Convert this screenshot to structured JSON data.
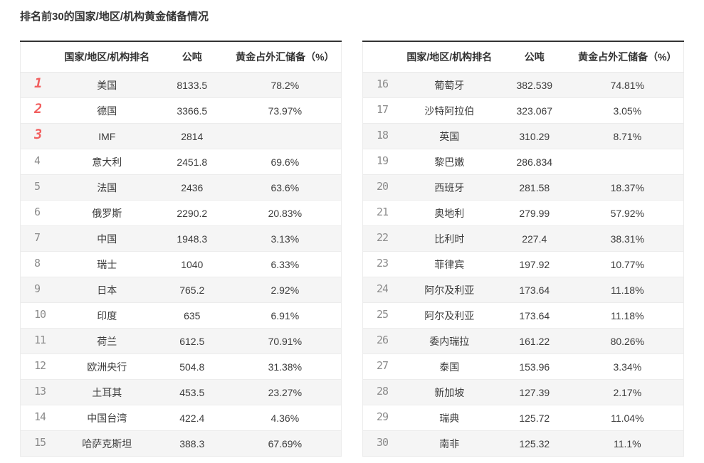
{
  "title": "排名前30的国家/地区/机构黄金储备情况",
  "colors": {
    "accent_rank_red": "#f15f5f",
    "rank_gray": "#8c8c8c",
    "row_alt_bg": "#f5f5f5",
    "table_top_border": "#333333",
    "divider_light": "#ececec",
    "text_dark": "#333333"
  },
  "chart_data": {
    "type": "table",
    "title": "排名前30的国家/地区/机构黄金储备情况",
    "columns": [
      "国家/地区/机构排名",
      "公吨",
      "黄金占外汇储备（%）"
    ],
    "layout": {
      "tables_side_by_side": 2,
      "highlight_top_ranks": 3,
      "alternating_rows": true
    },
    "tables": [
      {
        "name": "ranks-1-15",
        "rows": [
          {
            "rank": "1",
            "name": "美国",
            "tons": "8133.5",
            "pct": "78.2%"
          },
          {
            "rank": "2",
            "name": "德国",
            "tons": "3366.5",
            "pct": "73.97%"
          },
          {
            "rank": "3",
            "name": "IMF",
            "tons": "2814",
            "pct": ""
          },
          {
            "rank": "4",
            "name": "意大利",
            "tons": "2451.8",
            "pct": "69.6%"
          },
          {
            "rank": "5",
            "name": "法国",
            "tons": "2436",
            "pct": "63.6%"
          },
          {
            "rank": "6",
            "name": "俄罗斯",
            "tons": "2290.2",
            "pct": "20.83%"
          },
          {
            "rank": "7",
            "name": "中国",
            "tons": "1948.3",
            "pct": "3.13%"
          },
          {
            "rank": "8",
            "name": "瑞士",
            "tons": "1040",
            "pct": "6.33%"
          },
          {
            "rank": "9",
            "name": "日本",
            "tons": "765.2",
            "pct": "2.92%"
          },
          {
            "rank": "10",
            "name": "印度",
            "tons": "635",
            "pct": "6.91%"
          },
          {
            "rank": "11",
            "name": "荷兰",
            "tons": "612.5",
            "pct": "70.91%"
          },
          {
            "rank": "12",
            "name": "欧洲央行",
            "tons": "504.8",
            "pct": "31.38%"
          },
          {
            "rank": "13",
            "name": "土耳其",
            "tons": "453.5",
            "pct": "23.27%"
          },
          {
            "rank": "14",
            "name": "中国台湾",
            "tons": "422.4",
            "pct": "4.36%"
          },
          {
            "rank": "15",
            "name": "哈萨克斯坦",
            "tons": "388.3",
            "pct": "67.69%"
          }
        ]
      },
      {
        "name": "ranks-16-30",
        "rows": [
          {
            "rank": "16",
            "name": "葡萄牙",
            "tons": "382.539",
            "pct": "74.81%"
          },
          {
            "rank": "17",
            "name": "沙特阿拉伯",
            "tons": "323.067",
            "pct": "3.05%"
          },
          {
            "rank": "18",
            "name": "英国",
            "tons": "310.29",
            "pct": "8.71%"
          },
          {
            "rank": "19",
            "name": "黎巴嫩",
            "tons": "286.834",
            "pct": ""
          },
          {
            "rank": "20",
            "name": "西班牙",
            "tons": "281.58",
            "pct": "18.37%"
          },
          {
            "rank": "21",
            "name": "奥地利",
            "tons": "279.99",
            "pct": "57.92%"
          },
          {
            "rank": "22",
            "name": "比利时",
            "tons": "227.4",
            "pct": "38.31%"
          },
          {
            "rank": "23",
            "name": "菲律宾",
            "tons": "197.92",
            "pct": "10.77%"
          },
          {
            "rank": "24",
            "name": "阿尔及利亚",
            "tons": "173.64",
            "pct": "11.18%"
          },
          {
            "rank": "25",
            "name": "阿尔及利亚",
            "tons": "173.64",
            "pct": "11.18%"
          },
          {
            "rank": "26",
            "name": "委内瑞拉",
            "tons": "161.22",
            "pct": "80.26%"
          },
          {
            "rank": "27",
            "name": "泰国",
            "tons": "153.96",
            "pct": "3.34%"
          },
          {
            "rank": "28",
            "name": "新加坡",
            "tons": "127.39",
            "pct": "2.17%"
          },
          {
            "rank": "29",
            "name": "瑞典",
            "tons": "125.72",
            "pct": "11.04%"
          },
          {
            "rank": "30",
            "name": "南非",
            "tons": "125.32",
            "pct": "11.1%"
          }
        ]
      }
    ]
  }
}
